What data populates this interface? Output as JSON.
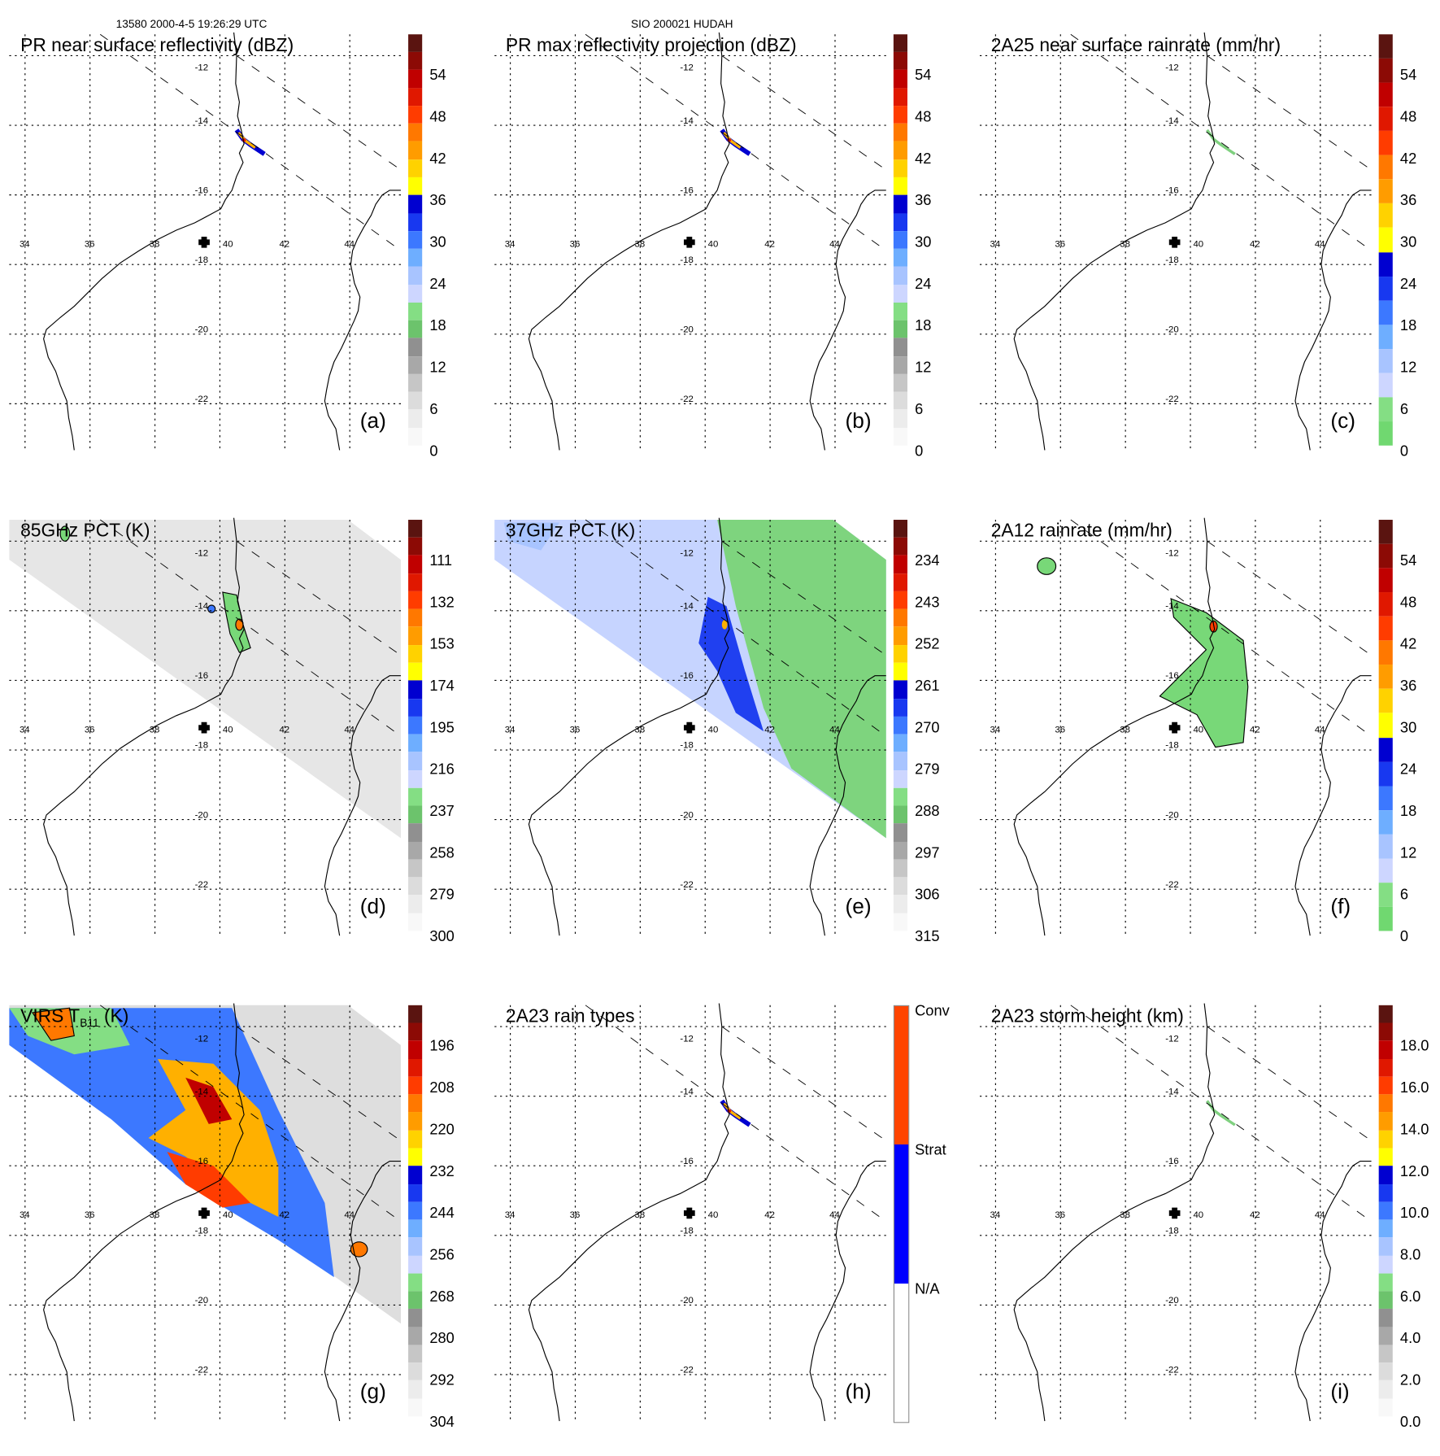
{
  "header": {
    "left": "13580 2000-4-5 19:26:29 UTC",
    "center": "SIO 200021 HUDAH"
  },
  "map": {
    "lon_labels": [
      "34",
      "36",
      "38",
      "40",
      "42",
      "44"
    ],
    "lat_labels": [
      "-12",
      "-14",
      "-16",
      "-18",
      "-20",
      "-22"
    ],
    "center_marker": "cross-icon"
  },
  "palettes": {
    "standard": [
      "#f8f8f8",
      "#ececec",
      "#dcdcdc",
      "#c6c6c6",
      "#a8a8a8",
      "#909090",
      "#6cc36c",
      "#84de84",
      "#cdd6ff",
      "#a8c4ff",
      "#6eaeff",
      "#3c78ff",
      "#1838f0",
      "#0000d0",
      "#ffff00",
      "#ffd200",
      "#ff9c00",
      "#ff7800",
      "#ff3c00",
      "#e01800",
      "#c00000",
      "#8c0a05",
      "#5a1410"
    ],
    "rain": [
      "#70d870",
      "#84de84",
      "#cdd6ff",
      "#a8c4ff",
      "#6eaeff",
      "#3c78ff",
      "#1838f0",
      "#0000d0",
      "#ffff00",
      "#ffd200",
      "#ff9c00",
      "#ff7800",
      "#ff3c00",
      "#e01800",
      "#c00000",
      "#8c0a05",
      "#5a1410"
    ],
    "height": [
      "#f8f8f8",
      "#ececec",
      "#dcdcdc",
      "#c6c6c6",
      "#a8a8a8",
      "#909090",
      "#6cc36c",
      "#84de84",
      "#cdd6ff",
      "#a8c4ff",
      "#6eaeff",
      "#3c78ff",
      "#1838f0",
      "#0000d0",
      "#ffff00",
      "#ffd200",
      "#ff9c00",
      "#ff7800",
      "#ff3c00",
      "#e01800",
      "#c00000",
      "#8c0a05",
      "#5a1410"
    ],
    "raintype": [
      "#ffffff",
      "#0000ff",
      "#ff4400"
    ]
  },
  "panels": [
    {
      "title": "PR near surface reflectivity (dBZ)",
      "letter": "(a)",
      "palette": "standard",
      "colorbar_labels": [
        "0",
        "6",
        "12",
        "18",
        "24",
        "30",
        "36",
        "42",
        "48",
        "54"
      ],
      "overlay": "streak"
    },
    {
      "title": "PR max reflectivity projection (dBZ)",
      "letter": "(b)",
      "palette": "standard",
      "colorbar_labels": [
        "0",
        "6",
        "12",
        "18",
        "24",
        "30",
        "36",
        "42",
        "48",
        "54"
      ],
      "overlay": "streak"
    },
    {
      "title": "2A25 near surface rainrate (mm/hr)",
      "letter": "(c)",
      "palette": "rain",
      "colorbar_labels": [
        "0",
        "6",
        "12",
        "18",
        "24",
        "30",
        "36",
        "42",
        "48",
        "54"
      ],
      "overlay": "streak-light"
    },
    {
      "title": "85GHz PCT (K)",
      "letter": "(d)",
      "palette": "standard",
      "colorbar_labels": [
        "300",
        "279",
        "258",
        "237",
        "216",
        "195",
        "174",
        "153",
        "132",
        "111"
      ],
      "overlay": "swath85"
    },
    {
      "title": "37GHz PCT (K)",
      "letter": "(e)",
      "palette": "standard",
      "colorbar_labels": [
        "315",
        "306",
        "297",
        "288",
        "279",
        "270",
        "261",
        "252",
        "243",
        "234"
      ],
      "overlay": "swath37"
    },
    {
      "title": "2A12 rainrate (mm/hr)",
      "letter": "(f)",
      "palette": "rain",
      "colorbar_labels": [
        "0",
        "6",
        "12",
        "18",
        "24",
        "30",
        "36",
        "42",
        "48",
        "54"
      ],
      "overlay": "tmi-rain"
    },
    {
      "title": "VIRS T",
      "title_sub": "B11",
      "title_end": " (K)",
      "letter": "(g)",
      "palette": "standard",
      "colorbar_labels": [
        "304",
        "292",
        "280",
        "268",
        "256",
        "244",
        "232",
        "220",
        "208",
        "196"
      ],
      "overlay": "virs"
    },
    {
      "title": "2A23 rain types",
      "letter": "(h)",
      "palette": "raintype",
      "colorbar_labels": [
        "N/A",
        "Strat",
        "Conv"
      ],
      "overlay": "streak"
    },
    {
      "title": "2A23 storm height (km)",
      "letter": "(i)",
      "palette": "height",
      "colorbar_labels": [
        "0.0",
        "2.0",
        "4.0",
        "6.0",
        "8.0",
        "10.0",
        "12.0",
        "14.0",
        "16.0",
        "18.0"
      ],
      "overlay": "streak-light"
    }
  ]
}
